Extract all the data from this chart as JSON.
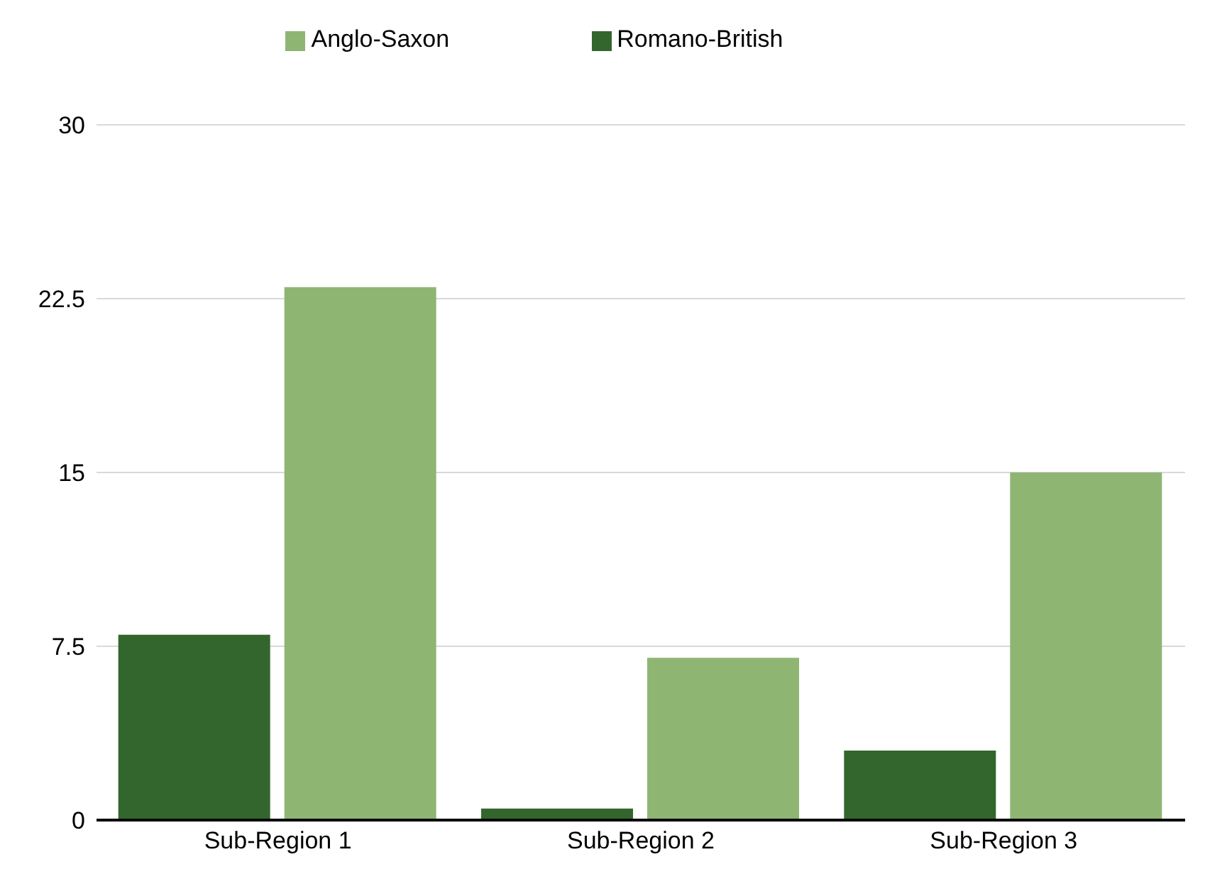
{
  "chart_data": {
    "type": "bar",
    "categories": [
      "Sub-Region 1",
      "Sub-Region 2",
      "Sub-Region 3"
    ],
    "series": [
      {
        "name": "Romano-British",
        "color": "#33662d",
        "values": [
          8,
          0.5,
          3
        ]
      },
      {
        "name": "Anglo-Saxon",
        "color": "#8fb573",
        "values": [
          23,
          7,
          15
        ]
      }
    ],
    "ylim": [
      0,
      30
    ],
    "yticks": [
      0,
      7.5,
      15,
      22.5,
      30
    ],
    "grid": "y",
    "legend": "top"
  }
}
